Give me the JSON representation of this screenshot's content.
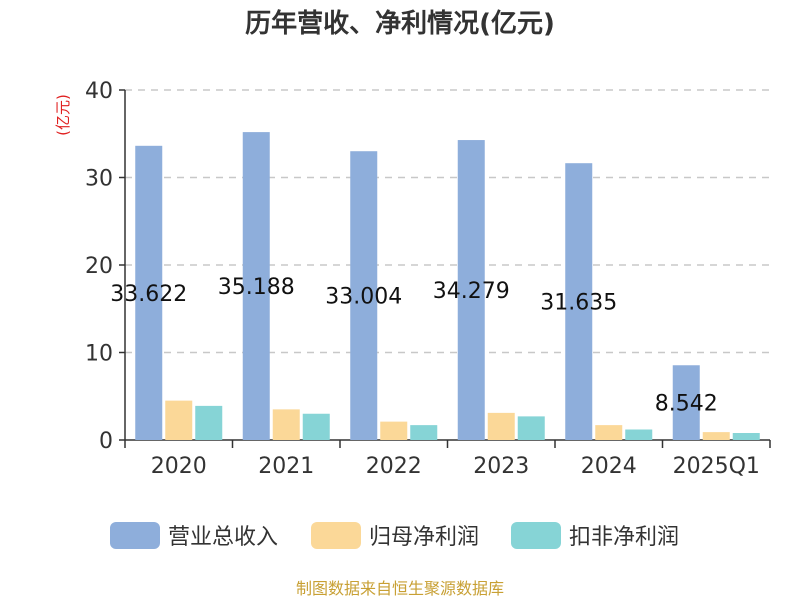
{
  "title": "历年营收、净利情况(亿元)",
  "source": "制图数据来自恒生聚源数据库",
  "chart_data": {
    "type": "bar",
    "title": "历年营收、净利情况(亿元)",
    "ylabel": "(亿元)",
    "xlabel": "",
    "ylim": [
      0,
      40
    ],
    "yticks": [
      0,
      10,
      20,
      30,
      40
    ],
    "grid": true,
    "legend_position": "bottom",
    "categories": [
      "2020",
      "2021",
      "2022",
      "2023",
      "2024",
      "2025Q1"
    ],
    "series": [
      {
        "name": "营业总收入",
        "color": "#8eaedb",
        "values": [
          33.622,
          35.188,
          33.004,
          34.279,
          31.635,
          8.542
        ],
        "labels": [
          "33.622",
          "35.188",
          "33.004",
          "34.279",
          "31.635",
          "8.542"
        ]
      },
      {
        "name": "归母净利润",
        "color": "#fbd898",
        "values": [
          4.5,
          3.5,
          2.1,
          3.1,
          1.7,
          0.9
        ]
      },
      {
        "name": "扣非净利润",
        "color": "#86d4d6",
        "values": [
          3.9,
          3.0,
          1.7,
          2.7,
          1.2,
          0.8
        ]
      }
    ]
  }
}
